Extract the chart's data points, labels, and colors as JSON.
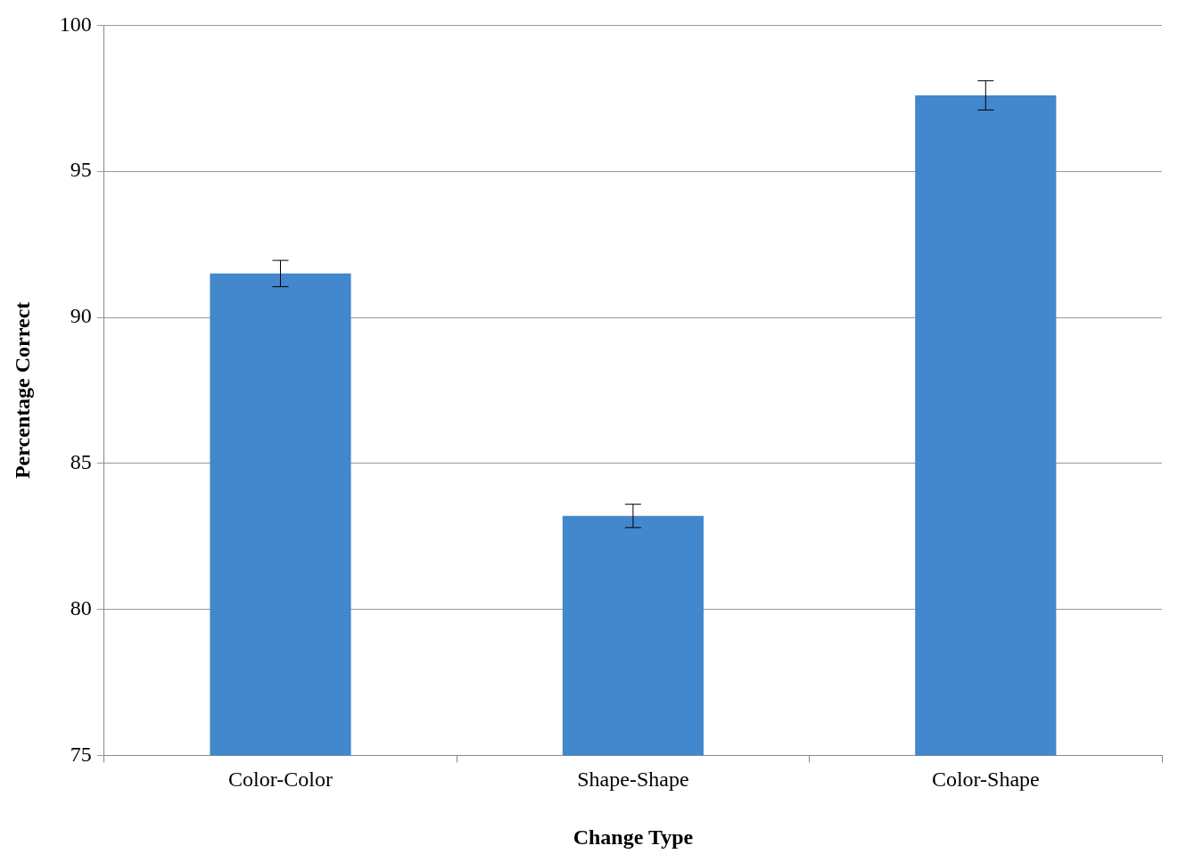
{
  "chart_data": {
    "type": "bar",
    "xlabel": "Change Type",
    "ylabel": "Percentage Correct",
    "categories": [
      "Color-Color",
      "Shape-Shape",
      "Color-Shape"
    ],
    "values": [
      91.5,
      83.2,
      97.6
    ],
    "errors": [
      0.45,
      0.4,
      0.5
    ],
    "color": "#4387cc",
    "ylim": [
      75,
      100
    ],
    "yticks": [
      75,
      80,
      85,
      90,
      95,
      100
    ],
    "grid": "y"
  }
}
